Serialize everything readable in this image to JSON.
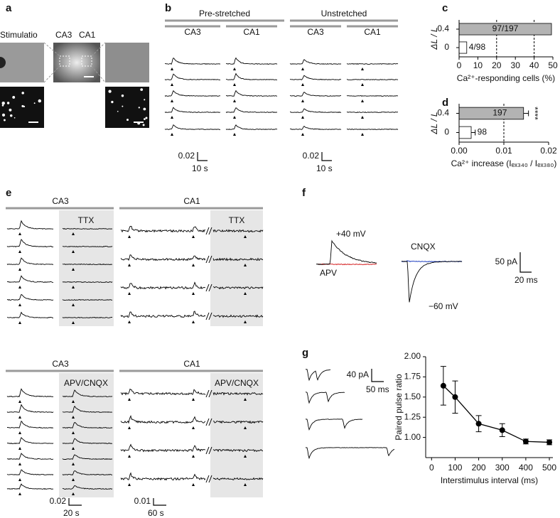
{
  "panel_labels": [
    "a",
    "b",
    "c",
    "d",
    "e",
    "f",
    "g"
  ],
  "a": {
    "labels": [
      "Stimulatio",
      "CA3",
      "CA1"
    ]
  },
  "b": {
    "groups": [
      "Pre-stretched",
      "Unstretched"
    ],
    "regions": [
      "CA3",
      "CA1",
      "CA3",
      "CA1"
    ],
    "scale_bars": [
      {
        "y": "0.02",
        "x": "10 s"
      },
      {
        "y": "0.02",
        "x": "10 s"
      }
    ]
  },
  "e": {
    "top": {
      "regions": [
        "CA3",
        "CA1"
      ],
      "treatment": "TTX"
    },
    "bottom": {
      "regions": [
        "CA3",
        "CA1"
      ],
      "treatment": "APV/CNQX"
    },
    "scale_bars": [
      {
        "y": "0.02",
        "x": "20 s"
      },
      {
        "y": "0.01",
        "x": "60 s"
      }
    ]
  },
  "f": {
    "labels": {
      "depolarized": "+40 mV",
      "apv": "APV",
      "cnqx": "CNQX",
      "hyperpolarized": "−60 mV"
    },
    "scale_bar": {
      "y": "50 pA",
      "x": "20 ms"
    }
  },
  "g": {
    "scale_bar": {
      "y": "40 pA",
      "x": "50 ms"
    }
  },
  "chart_data": [
    {
      "type": "hbar",
      "ylabel": "ΔL / L",
      "categories": [
        "0.4",
        "0"
      ],
      "values": [
        49.24,
        4.08
      ],
      "value_labels": [
        "97/197",
        "4/98"
      ],
      "colors": [
        "#b3b3b3",
        "#ffffff"
      ],
      "xlabel": "Ca²⁺-responding cells (%)",
      "xlim": [
        0,
        50
      ],
      "xticks": [
        0,
        10,
        20,
        30,
        40,
        50
      ],
      "reference_lines": [
        20,
        40
      ]
    },
    {
      "type": "hbar",
      "ylabel": "ΔL / L",
      "categories": [
        "0.4",
        "0"
      ],
      "values": [
        0.0144,
        0.0027
      ],
      "errors": [
        0.0011,
        0.0009
      ],
      "n_labels": [
        "197",
        "98"
      ],
      "significance": "****",
      "colors": [
        "#b3b3b3",
        "#ffffff"
      ],
      "xlabel": "Ca²⁺ increase (Iₑₓ₃₄₀ / Iₑₓ₃₈₀)",
      "xlim": [
        0,
        0.02
      ],
      "xticks": [
        {
          "value": 0,
          "label": "0.00"
        },
        0.01,
        0.02
      ],
      "reference_lines": [
        0.01
      ]
    },
    {
      "type": "line",
      "x": [
        50,
        100,
        200,
        300,
        400,
        500
      ],
      "values": [
        1.64,
        1.5,
        1.17,
        1.09,
        0.95,
        0.94
      ],
      "errors": [
        0.24,
        0.2,
        0.1,
        0.08,
        0.03,
        0.03
      ],
      "color": "#000000",
      "xlabel": "Interstimulus interval (ms)",
      "ylabel": "Paired pulse ratio",
      "xlim": [
        -25,
        515
      ],
      "xticks": [
        0,
        100,
        200,
        300,
        400,
        500
      ],
      "ylim": [
        0.75,
        2.0
      ],
      "yticks": [
        {
          "value": 1,
          "label": "1.00"
        },
        {
          "value": 1.25,
          "label": "1.25"
        },
        {
          "value": 1.5,
          "label": "1.50"
        },
        {
          "value": 1.75,
          "label": "1.75"
        },
        {
          "value": 2,
          "label": "2.00"
        }
      ]
    }
  ]
}
